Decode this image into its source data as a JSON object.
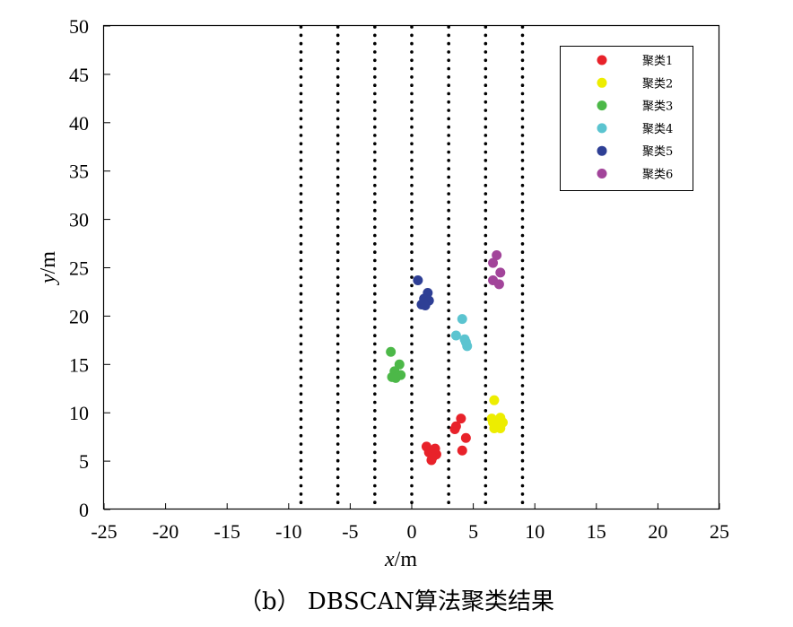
{
  "caption": "（b） DBSCAN算法聚类结果",
  "chart_data": {
    "type": "scatter",
    "xlabel": "x/m",
    "ylabel": "y/m",
    "xlim": [
      -25,
      25
    ],
    "ylim": [
      0,
      50
    ],
    "xticks": [
      -25,
      -20,
      -15,
      -10,
      -5,
      0,
      5,
      10,
      15,
      20,
      25
    ],
    "yticks": [
      0,
      5,
      10,
      15,
      20,
      25,
      30,
      35,
      40,
      45,
      50
    ],
    "grid": false,
    "legend_position": "top-right",
    "vertical_dotted_lines_x": [
      -9,
      -6,
      -3,
      0,
      3,
      6,
      9
    ],
    "series": [
      {
        "name": "聚类1",
        "color": "#e8222a",
        "points": [
          [
            1.2,
            6.5
          ],
          [
            1.9,
            6.3
          ],
          [
            1.4,
            5.9
          ],
          [
            2.0,
            5.7
          ],
          [
            1.7,
            5.4
          ],
          [
            1.6,
            5.1
          ],
          [
            4.0,
            9.4
          ],
          [
            3.6,
            8.6
          ],
          [
            3.5,
            8.3
          ],
          [
            4.4,
            7.4
          ],
          [
            4.1,
            6.1
          ]
        ]
      },
      {
        "name": "聚类2",
        "color": "#eded00",
        "points": [
          [
            6.7,
            11.3
          ],
          [
            6.5,
            9.4
          ],
          [
            7.2,
            9.5
          ],
          [
            6.6,
            9.0
          ],
          [
            7.4,
            9.0
          ],
          [
            6.8,
            8.6
          ],
          [
            6.7,
            8.4
          ],
          [
            7.2,
            8.4
          ]
        ]
      },
      {
        "name": "聚类3",
        "color": "#4cb848",
        "points": [
          [
            -1.7,
            16.3
          ],
          [
            -1.0,
            15.0
          ],
          [
            -1.4,
            14.3
          ],
          [
            -0.9,
            13.9
          ],
          [
            -1.6,
            13.7
          ],
          [
            -1.3,
            13.6
          ]
        ]
      },
      {
        "name": "聚类4",
        "color": "#5bc4d0",
        "points": [
          [
            4.1,
            19.7
          ],
          [
            3.6,
            18.0
          ],
          [
            4.3,
            17.6
          ],
          [
            4.4,
            17.3
          ],
          [
            4.5,
            16.9
          ]
        ]
      },
      {
        "name": "聚类5",
        "color": "#2e3f95",
        "points": [
          [
            0.5,
            23.7
          ],
          [
            1.3,
            22.4
          ],
          [
            1.0,
            21.8
          ],
          [
            1.4,
            21.6
          ],
          [
            0.8,
            21.2
          ],
          [
            1.1,
            21.1
          ]
        ]
      },
      {
        "name": "聚类6",
        "color": "#a2449a",
        "points": [
          [
            6.9,
            26.3
          ],
          [
            6.6,
            25.5
          ],
          [
            7.2,
            24.5
          ],
          [
            6.6,
            23.7
          ],
          [
            7.1,
            23.3
          ]
        ]
      }
    ]
  }
}
